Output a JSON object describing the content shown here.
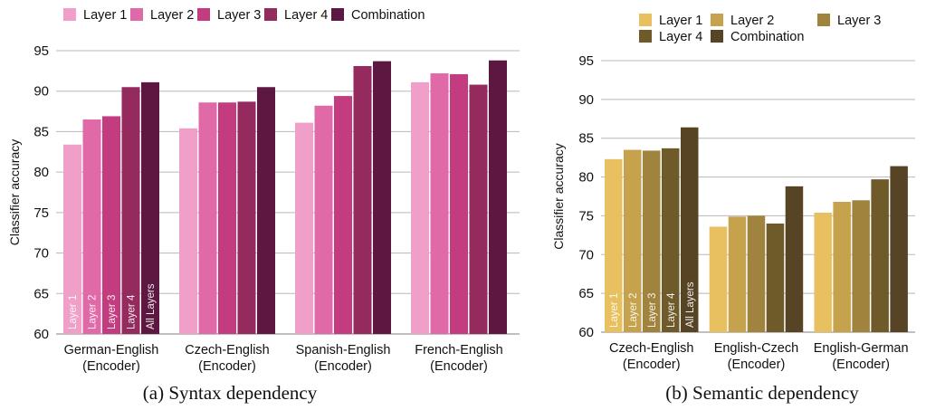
{
  "chart_data": [
    {
      "type": "bar",
      "caption": "(a) Syntax dependency",
      "ylabel": "Classifier accuracy",
      "ylim": [
        60,
        95
      ],
      "yticks": [
        60,
        65,
        70,
        75,
        80,
        85,
        90,
        95
      ],
      "grid": true,
      "legend_position": "top",
      "categories": [
        [
          "German-English",
          "(Encoder)"
        ],
        [
          "Czech-English",
          "(Encoder)"
        ],
        [
          "Spanish-English",
          "(Encoder)"
        ],
        [
          "French-English",
          "(Encoder)"
        ]
      ],
      "series": [
        {
          "name": "Layer 1",
          "bar_label": "Layer 1",
          "color": "#f0a0c8",
          "values": [
            83.4,
            85.4,
            86.1,
            91.1
          ]
        },
        {
          "name": "Layer 2",
          "bar_label": "Layer 2",
          "color": "#e06aa8",
          "values": [
            86.5,
            88.6,
            88.2,
            92.2
          ]
        },
        {
          "name": "Layer 3",
          "bar_label": "Layer 3",
          "color": "#c23c7f",
          "values": [
            86.9,
            88.6,
            89.4,
            92.1
          ]
        },
        {
          "name": "Layer 4",
          "bar_label": "Layer 4",
          "color": "#942a5e",
          "values": [
            90.5,
            88.7,
            93.1,
            90.8
          ]
        },
        {
          "name": "Combination",
          "bar_label": "All Layers",
          "color": "#5c1840",
          "values": [
            91.1,
            90.5,
            93.7,
            93.8
          ]
        }
      ]
    },
    {
      "type": "bar",
      "caption": "(b) Semantic dependency",
      "ylabel": "Classifier accuracy",
      "ylim": [
        60,
        95
      ],
      "yticks": [
        60,
        65,
        70,
        75,
        80,
        85,
        90,
        95
      ],
      "grid": true,
      "legend_position": "top",
      "categories": [
        [
          "Czech-English",
          "(Encoder)"
        ],
        [
          "English-Czech",
          "(Encoder)"
        ],
        [
          "English-German",
          "(Encoder)"
        ]
      ],
      "series": [
        {
          "name": "Layer 1",
          "bar_label": "Layer 1",
          "color": "#e8c060",
          "values": [
            82.3,
            73.6,
            75.4
          ]
        },
        {
          "name": "Layer 2",
          "bar_label": "Layer 2",
          "color": "#c6a24c",
          "values": [
            83.5,
            74.9,
            76.8
          ]
        },
        {
          "name": "Layer 3",
          "bar_label": "Layer 3",
          "color": "#a0843e",
          "values": [
            83.4,
            75.0,
            77.0
          ]
        },
        {
          "name": "Layer 4",
          "bar_label": "Layer 4",
          "color": "#6f5a2a",
          "values": [
            83.7,
            74.0,
            79.7
          ]
        },
        {
          "name": "Combination",
          "bar_label": "All Layers",
          "color": "#574425",
          "values": [
            86.4,
            78.8,
            81.4
          ]
        }
      ]
    }
  ]
}
